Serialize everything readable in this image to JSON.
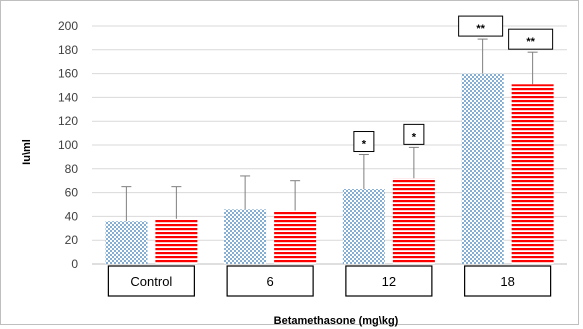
{
  "chart_data": {
    "type": "bar",
    "title": "",
    "xlabel": "Betamethasone (mg\\kg)",
    "ylabel": "Iu\\ml",
    "ylim": [
      0,
      200
    ],
    "yticks": [
      0,
      20,
      40,
      60,
      80,
      100,
      120,
      140,
      160,
      180,
      200
    ],
    "grid": true,
    "categories": [
      "Control",
      "6",
      "12",
      "18"
    ],
    "series": [
      {
        "pattern": "blue-dots",
        "color": "#2e75b6",
        "values": [
          36,
          46,
          63,
          160
        ],
        "errors": [
          29,
          28,
          29,
          29
        ],
        "significance": [
          "",
          "",
          "*",
          "**"
        ]
      },
      {
        "pattern": "red-stripes",
        "color": "#ff0000",
        "values": [
          38,
          45,
          72,
          151
        ],
        "errors": [
          27,
          25,
          26,
          27
        ],
        "significance": [
          "",
          "",
          "*",
          "**"
        ]
      }
    ]
  }
}
